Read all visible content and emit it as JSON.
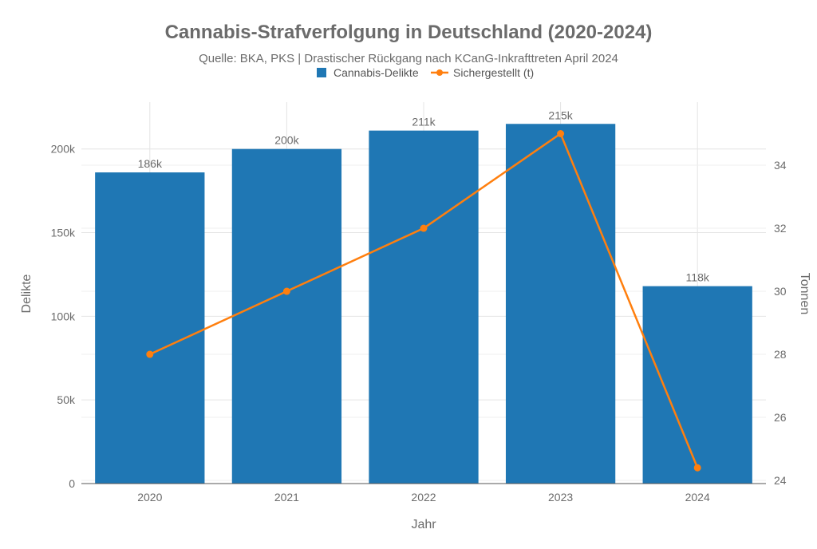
{
  "chart_data": {
    "type": "bar+line",
    "title": "Cannabis-Strafverfolgung in Deutschland (2020-2024)",
    "subtitle": "Quelle: BKA, PKS | Drastischer Rückgang nach KCanG-Inkrafttreten April 2024",
    "xlabel": "Jahr",
    "ylabel_left": "Delikte",
    "ylabel_right": "Tonnen",
    "categories": [
      "2020",
      "2021",
      "2022",
      "2023",
      "2024"
    ],
    "y_left_range": [
      0,
      228000
    ],
    "y_left_ticks": [
      0,
      50000,
      100000,
      150000,
      200000
    ],
    "y_left_tick_labels": [
      "0",
      "50k",
      "100k",
      "150k",
      "200k"
    ],
    "y_right_range": [
      23.9,
      36.0
    ],
    "y_right_ticks": [
      24,
      26,
      28,
      30,
      32,
      34
    ],
    "y_right_tick_labels": [
      "24",
      "26",
      "28",
      "30",
      "32",
      "34"
    ],
    "legend_position": "top-center",
    "grid": true,
    "series": [
      {
        "name": "Cannabis-Delikte",
        "type": "bar",
        "axis": "left",
        "color": "#1f77b4",
        "values": [
          186000,
          200000,
          211000,
          215000,
          118000
        ],
        "labels": [
          "186k",
          "200k",
          "211k",
          "215k",
          "118k"
        ]
      },
      {
        "name": "Sichergestellt (t)",
        "type": "line",
        "axis": "right",
        "color": "#ff7f0e",
        "values": [
          28,
          30,
          32,
          35,
          24.4
        ]
      }
    ]
  }
}
